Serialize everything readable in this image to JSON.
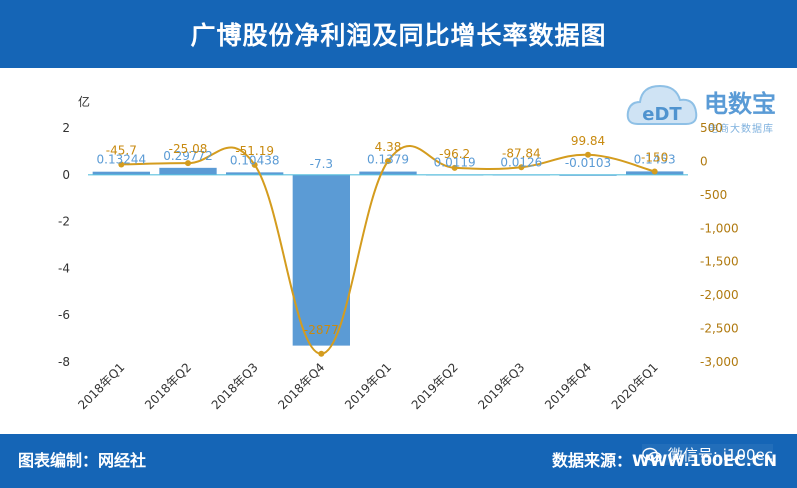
{
  "header": {
    "title": "广博股份净利润及同比增长率数据图"
  },
  "footer": {
    "left_label": "图表编制：网经社",
    "right_label": "数据来源：WWW.100EC.CN"
  },
  "watermark": {
    "wechat_label": "微信号: i100ec"
  },
  "logo": {
    "brand": "电数宝",
    "sub": "电商大数据库",
    "badge": "eDT"
  },
  "colors": {
    "header_bg": "#1565b6",
    "bar": "#5b9bd5",
    "line": "#d49c1e"
  },
  "chart_data": {
    "type": "bar",
    "categories": [
      "2018年Q1",
      "2018年Q2",
      "2018年Q3",
      "2018年Q4",
      "2019年Q1",
      "2019年Q2",
      "2019年Q3",
      "2019年Q4",
      "2020年Q1"
    ],
    "y_unit_label": "亿",
    "ylim": [
      -8,
      2
    ],
    "yticks": [
      "2",
      "0",
      "-2",
      "-4",
      "-6",
      "-8"
    ],
    "y2lim": [
      -3000,
      500
    ],
    "y2ticks": [
      "500",
      "0",
      "-500",
      "-1,000",
      "-1,500",
      "-2,000",
      "-2,500",
      "-3,000"
    ],
    "series": [
      {
        "type": "bar",
        "values": [
          0.13244,
          0.29772,
          0.10438,
          -7.3,
          0.1379,
          0.0119,
          0.0126,
          -0.0103,
          0.1453
        ],
        "labels": [
          "0.13244",
          "0.29772",
          "0.10438",
          "-7.3",
          "0.1379",
          "0.0119",
          "0.0126",
          "-0.0103",
          "0.1453"
        ]
      },
      {
        "type": "line",
        "axis": "secondary",
        "values": [
          -45.7,
          -25.08,
          -51.19,
          -2877,
          4.38,
          -96.2,
          -87.84,
          99.84,
          -150
        ],
        "labels": [
          "-45.7",
          "-25.08",
          "-51.19",
          "-2877",
          "4.38",
          "-96.2",
          "-87.84",
          "99.84",
          "-150"
        ]
      }
    ],
    "legend": "none",
    "grid": false
  }
}
